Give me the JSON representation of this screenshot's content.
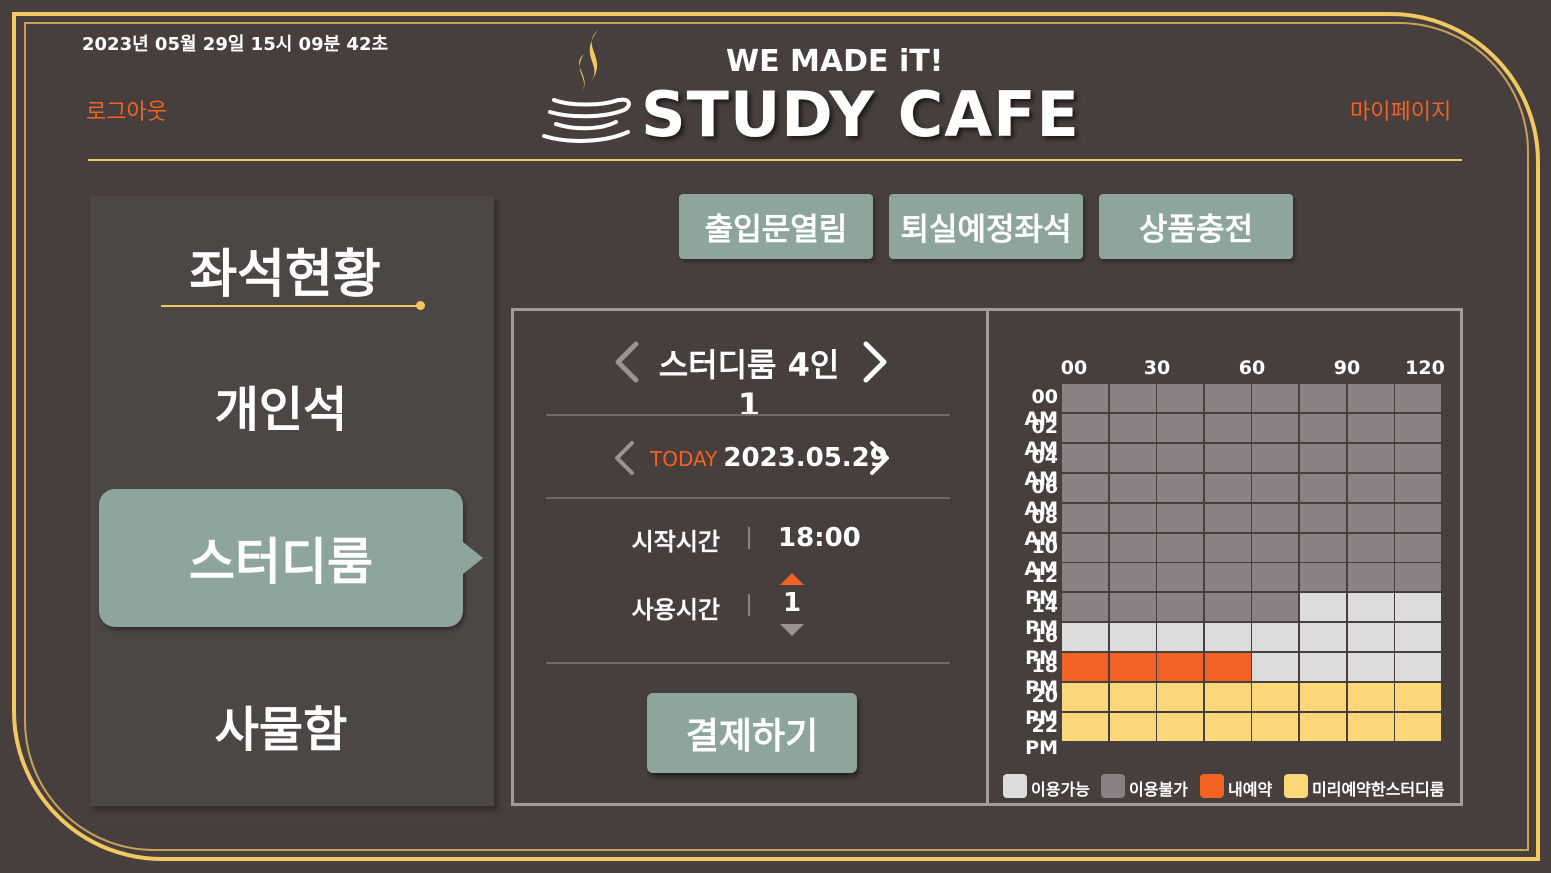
{
  "header": {
    "datetime": "2023년 05월 29일 15시 09분 42초",
    "logout": "로그아웃",
    "mypage": "마이페이지",
    "slogan": "WE MADE iT!",
    "brand": "STUDY CAFE"
  },
  "sidebar": {
    "title": "좌석현황",
    "items": [
      "개인석",
      "스터디룸",
      "사물함"
    ],
    "active": "스터디룸"
  },
  "top_buttons": [
    "출입문열림",
    "퇴실예정좌석",
    "상품충전"
  ],
  "booking": {
    "room": "스터디룸 4인 1",
    "today_label": "TODAY",
    "date": "2023.05.29",
    "start_label": "시작시간",
    "start_value": "18:00",
    "duration_label": "사용시간",
    "duration_value": "1",
    "pay_button": "결제하기"
  },
  "schedule": {
    "column_labels": [
      "00",
      "30",
      "60",
      "90",
      "120"
    ],
    "row_labels": [
      "00 AM",
      "02 AM",
      "04 AM",
      "06 AM",
      "08 AM",
      "10 AM",
      "12 PM",
      "14 PM",
      "16 PM",
      "18 PM",
      "20 PM",
      "22 PM"
    ],
    "colors": {
      "available": "#dcdcdc",
      "unavailable": "#8a8282",
      "mine": "#f06322",
      "reserved": "#fdd878"
    },
    "grid": [
      [
        "unavailable",
        "unavailable",
        "unavailable",
        "unavailable",
        "unavailable",
        "unavailable",
        "unavailable",
        "unavailable"
      ],
      [
        "unavailable",
        "unavailable",
        "unavailable",
        "unavailable",
        "unavailable",
        "unavailable",
        "unavailable",
        "unavailable"
      ],
      [
        "unavailable",
        "unavailable",
        "unavailable",
        "unavailable",
        "unavailable",
        "unavailable",
        "unavailable",
        "unavailable"
      ],
      [
        "unavailable",
        "unavailable",
        "unavailable",
        "unavailable",
        "unavailable",
        "unavailable",
        "unavailable",
        "unavailable"
      ],
      [
        "unavailable",
        "unavailable",
        "unavailable",
        "unavailable",
        "unavailable",
        "unavailable",
        "unavailable",
        "unavailable"
      ],
      [
        "unavailable",
        "unavailable",
        "unavailable",
        "unavailable",
        "unavailable",
        "unavailable",
        "unavailable",
        "unavailable"
      ],
      [
        "unavailable",
        "unavailable",
        "unavailable",
        "unavailable",
        "unavailable",
        "unavailable",
        "unavailable",
        "unavailable"
      ],
      [
        "unavailable",
        "unavailable",
        "unavailable",
        "unavailable",
        "unavailable",
        "available",
        "available",
        "available"
      ],
      [
        "available",
        "available",
        "available",
        "available",
        "available",
        "available",
        "available",
        "available"
      ],
      [
        "mine",
        "mine",
        "mine",
        "mine",
        "available",
        "available",
        "available",
        "available"
      ],
      [
        "reserved",
        "reserved",
        "reserved",
        "reserved",
        "reserved",
        "reserved",
        "reserved",
        "reserved"
      ],
      [
        "reserved",
        "reserved",
        "reserved",
        "reserved",
        "reserved",
        "reserved",
        "reserved",
        "reserved"
      ]
    ],
    "legend": [
      {
        "key": "available",
        "label": "이용가능"
      },
      {
        "key": "unavailable",
        "label": "이용불가"
      },
      {
        "key": "mine",
        "label": "내예약"
      },
      {
        "key": "reserved",
        "label": "미리예약한스터디룸"
      }
    ]
  }
}
